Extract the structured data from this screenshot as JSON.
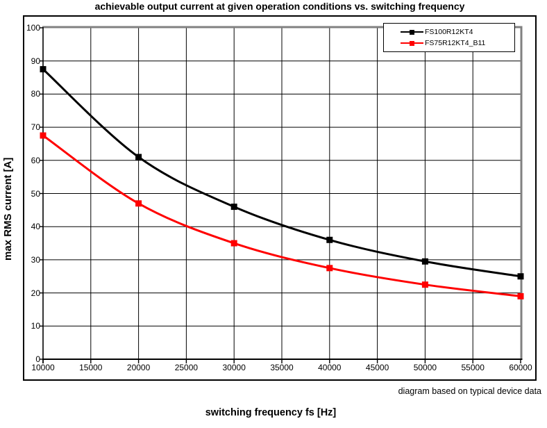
{
  "title": "achievable output current at given operation conditions vs. switching frequency",
  "x_axis_title": "switching frequency fs [Hz]",
  "y_axis_title": "max RMS current [A]",
  "caption": "diagram based on typical device data",
  "chart_data": {
    "type": "line",
    "title": "achievable output current at given operation conditions vs. switching frequency",
    "xlabel": "switching frequency fs [Hz]",
    "ylabel": "max RMS current [A]",
    "x": [
      10000,
      20000,
      30000,
      40000,
      50000,
      60000
    ],
    "series": [
      {
        "name": "FS100R12KT4",
        "color": "#000000",
        "marker": "square",
        "values": [
          87.5,
          61,
          46,
          36,
          29.5,
          25
        ]
      },
      {
        "name": "FS75R12KT4_B11",
        "color": "#ff0000",
        "marker": "square",
        "values": [
          67.5,
          47,
          35,
          27.5,
          22.5,
          19
        ]
      }
    ],
    "xlim": [
      10000,
      60000
    ],
    "ylim": [
      0,
      100
    ],
    "x_ticks": [
      10000,
      15000,
      20000,
      25000,
      30000,
      35000,
      40000,
      45000,
      50000,
      55000,
      60000
    ],
    "y_ticks": [
      0,
      10,
      20,
      30,
      40,
      50,
      60,
      70,
      80,
      90,
      100
    ],
    "grid": true,
    "smooth": true,
    "legend_position": "top-right",
    "caption": "diagram based on typical device data",
    "colors": {
      "grid": "#000000",
      "axis": "#000000",
      "plot_border": "#808080"
    }
  }
}
